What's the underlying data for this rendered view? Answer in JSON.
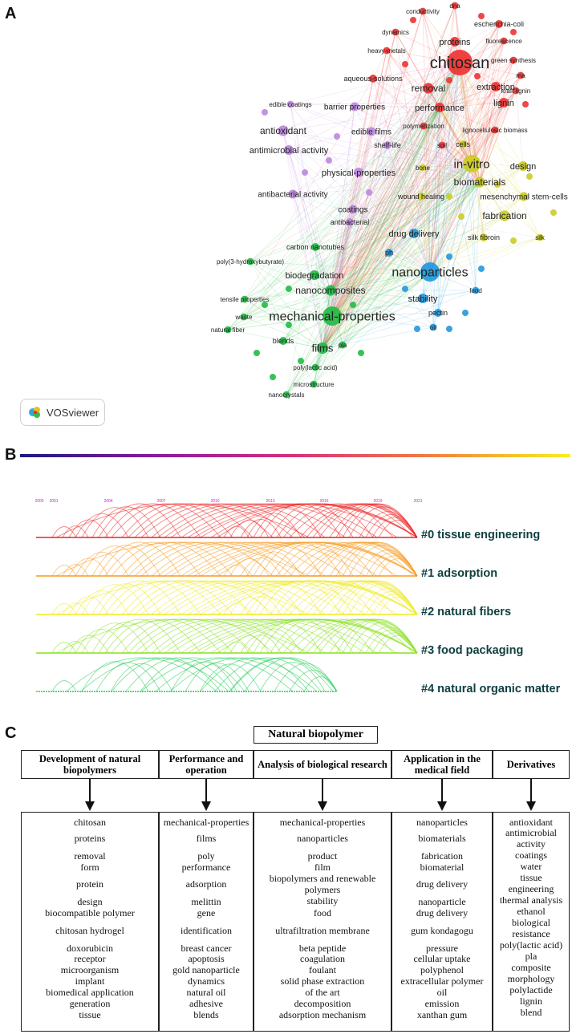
{
  "panels": {
    "a": "A",
    "b": "B",
    "c": "C"
  },
  "logo": {
    "label": "VOSviewer"
  },
  "network": {
    "colors": {
      "red": "#ee3333",
      "purple": "#bb88dd",
      "yellow": "#cccc22",
      "green": "#22bb44",
      "blue": "#2299dd"
    },
    "nodes": [
      {
        "label": "chitosan",
        "cluster": "red",
        "size": 20
      },
      {
        "label": "proteins",
        "cluster": "red",
        "size": 11
      },
      {
        "label": "removal",
        "cluster": "red",
        "size": 12
      },
      {
        "label": "extraction",
        "cluster": "red",
        "size": 11
      },
      {
        "label": "lignin",
        "cluster": "red",
        "size": 11
      },
      {
        "label": "performance",
        "cluster": "red",
        "size": 11
      },
      {
        "label": "escherichia-coli",
        "cluster": "red",
        "size": 9
      },
      {
        "label": "conductivity",
        "cluster": "red",
        "size": 8
      },
      {
        "label": "dna",
        "cluster": "red",
        "size": 8
      },
      {
        "label": "dynamics",
        "cluster": "red",
        "size": 8
      },
      {
        "label": "heavy-metals",
        "cluster": "red",
        "size": 8
      },
      {
        "label": "fluorescence",
        "cluster": "red",
        "size": 8
      },
      {
        "label": "green synthesis",
        "cluster": "red",
        "size": 8
      },
      {
        "label": "rna",
        "cluster": "red",
        "size": 8
      },
      {
        "label": "kraft lignin",
        "cluster": "red",
        "size": 8
      },
      {
        "label": "aqueous-solutions",
        "cluster": "red",
        "size": 9
      },
      {
        "label": "polymerization",
        "cluster": "red",
        "size": 8
      },
      {
        "label": "lignocellulosic biomass",
        "cluster": "red",
        "size": 8
      },
      {
        "label": "soil",
        "cluster": "red",
        "size": 8
      },
      {
        "label": "antioxidant",
        "cluster": "purple",
        "size": 12
      },
      {
        "label": "antimicrobial activity",
        "cluster": "purple",
        "size": 11
      },
      {
        "label": "edible coatings",
        "cluster": "purple",
        "size": 8
      },
      {
        "label": "barrier properties",
        "cluster": "purple",
        "size": 10
      },
      {
        "label": "edible films",
        "cluster": "purple",
        "size": 10
      },
      {
        "label": "shelf-life",
        "cluster": "purple",
        "size": 9
      },
      {
        "label": "physical-properties",
        "cluster": "purple",
        "size": 11
      },
      {
        "label": "antibacterial activity",
        "cluster": "purple",
        "size": 10
      },
      {
        "label": "coatings",
        "cluster": "purple",
        "size": 10
      },
      {
        "label": "antibacterial",
        "cluster": "purple",
        "size": 9
      },
      {
        "label": "in-vitro",
        "cluster": "yellow",
        "size": 15
      },
      {
        "label": "cells",
        "cluster": "yellow",
        "size": 9
      },
      {
        "label": "design",
        "cluster": "yellow",
        "size": 11
      },
      {
        "label": "biomaterials",
        "cluster": "yellow",
        "size": 12
      },
      {
        "label": "bone",
        "cluster": "yellow",
        "size": 8
      },
      {
        "label": "wound healing",
        "cluster": "yellow",
        "size": 9
      },
      {
        "label": "mesenchymal stem-cells",
        "cluster": "yellow",
        "size": 10
      },
      {
        "label": "fabrication",
        "cluster": "yellow",
        "size": 12
      },
      {
        "label": "silk fibroin",
        "cluster": "yellow",
        "size": 9
      },
      {
        "label": "silk",
        "cluster": "yellow",
        "size": 8
      },
      {
        "label": "drug delivery",
        "cluster": "blue",
        "size": 11
      },
      {
        "label": "ph",
        "cluster": "blue",
        "size": 9
      },
      {
        "label": "nanoparticles",
        "cluster": "blue",
        "size": 16
      },
      {
        "label": "food",
        "cluster": "blue",
        "size": 8
      },
      {
        "label": "stability",
        "cluster": "blue",
        "size": 11
      },
      {
        "label": "pectin",
        "cluster": "blue",
        "size": 9
      },
      {
        "label": "oil",
        "cluster": "blue",
        "size": 8
      },
      {
        "label": "carbon nanotubes",
        "cluster": "green",
        "size": 9
      },
      {
        "label": "poly(3-hydroxybutyrate)",
        "cluster": "green",
        "size": 8
      },
      {
        "label": "biodegradation",
        "cluster": "green",
        "size": 11
      },
      {
        "label": "nanocomposites",
        "cluster": "green",
        "size": 12
      },
      {
        "label": "tensile properties",
        "cluster": "green",
        "size": 8
      },
      {
        "label": "waste",
        "cluster": "green",
        "size": 8
      },
      {
        "label": "mechanical-properties",
        "cluster": "green",
        "size": 16
      },
      {
        "label": "natural fiber",
        "cluster": "green",
        "size": 8
      },
      {
        "label": "blends",
        "cluster": "green",
        "size": 9
      },
      {
        "label": "films",
        "cluster": "green",
        "size": 13
      },
      {
        "label": "pla",
        "cluster": "green",
        "size": 8
      },
      {
        "label": "poly(lactic acid)",
        "cluster": "green",
        "size": 8
      },
      {
        "label": "microstructure",
        "cluster": "green",
        "size": 8
      },
      {
        "label": "nanocrystals",
        "cluster": "green",
        "size": 8
      }
    ]
  },
  "timeline": {
    "years": [
      "2000",
      "2001",
      "2004",
      "2007",
      "2010",
      "2013",
      "2016",
      "2019",
      "2021"
    ],
    "clusters": [
      {
        "label": "#0 tissue engineering",
        "color": "#ee2222"
      },
      {
        "label": "#1 adsorption",
        "color": "#f59a20"
      },
      {
        "label": "#2 natural fibers",
        "color": "#eeea20"
      },
      {
        "label": "#3 food packaging",
        "color": "#88e020"
      },
      {
        "label": "#4 natural organic matter",
        "color": "#22cc55"
      }
    ]
  },
  "diagram": {
    "title": "Natural biopolymer",
    "columns": [
      {
        "header": "Development of natural biopolymers",
        "items": [
          "chitosan",
          "proteins",
          "removal",
          "form",
          "protein",
          "design",
          "biocompatible polymer",
          "chitosan hydrogel",
          "doxorubicin",
          "receptor",
          "microorganism",
          "implant",
          "biomedical application",
          "generation",
          "tissue"
        ]
      },
      {
        "header": "Performance and operation",
        "items": [
          "mechanical-properties",
          "films",
          "poly",
          "performance",
          "adsorption",
          "melittin",
          "gene",
          "identification",
          "breast cancer",
          "apoptosis",
          "gold nanoparticle",
          "dynamics",
          "natural oil",
          "adhesive",
          "blends"
        ]
      },
      {
        "header": "Analysis of biological research",
        "items": [
          "mechanical-properties",
          "nanoparticles",
          "product",
          "film",
          "biopolymers and renewable",
          "polymers",
          "stability",
          "food",
          "ultrafiltration membrane",
          "beta peptide",
          "coagulation",
          "foulant",
          "solid phase extraction",
          "of the art",
          "decomposition",
          "adsorption mechanism"
        ]
      },
      {
        "header": "Application in the medical field",
        "items": [
          "nanoparticles",
          "biomaterials",
          "fabrication",
          "biomaterial",
          "drug delivery",
          "nanoparticle",
          "drug delivery",
          "gum kondagogu",
          "pressure",
          "cellular uptake",
          "polyphenol",
          "extracellular polymer",
          "oil",
          "emission",
          "xanthan gum"
        ]
      },
      {
        "header": "Derivatives",
        "items": [
          "antioxidant",
          "antimicrobial",
          "activity",
          "coatings",
          "water",
          "tissue",
          "engineering",
          "thermal analysis",
          "ethanol",
          "biological",
          "resistance",
          "poly(lactic acid)",
          "pla",
          "composite",
          "morphology",
          "polylactide",
          "lignin",
          "blend"
        ]
      }
    ]
  }
}
